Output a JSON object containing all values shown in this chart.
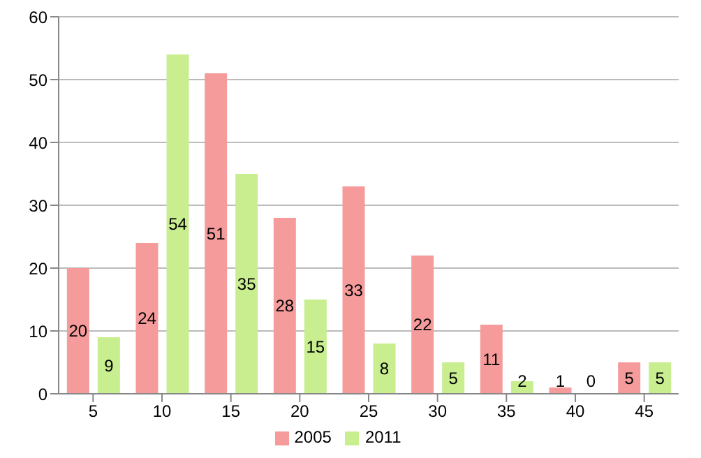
{
  "chart_data": {
    "type": "bar",
    "categories": [
      "5",
      "10",
      "15",
      "20",
      "25",
      "30",
      "35",
      "40",
      "45"
    ],
    "series": [
      {
        "name": "2005",
        "color": "#f59b9b",
        "values": [
          20,
          24,
          51,
          28,
          33,
          22,
          11,
          1,
          5
        ]
      },
      {
        "name": "2011",
        "color": "#c8ee90",
        "values": [
          9,
          54,
          35,
          15,
          8,
          5,
          2,
          0,
          5
        ]
      }
    ],
    "ylim": [
      0,
      60
    ],
    "yticks": [
      0,
      10,
      20,
      30,
      40,
      50,
      60
    ],
    "grid": "y",
    "legend": "bottom",
    "data_labels": true
  }
}
